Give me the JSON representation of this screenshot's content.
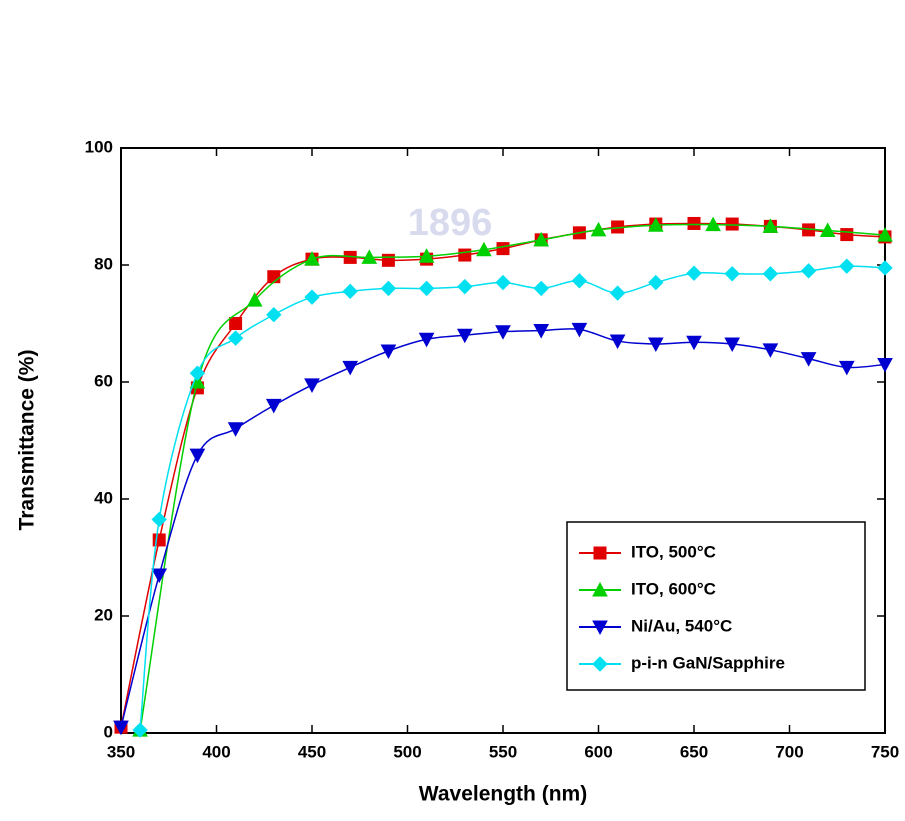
{
  "chart_data": {
    "type": "line",
    "xlabel": "Wavelength (nm)",
    "ylabel": "Transmittance (%)",
    "watermark_text": "1896",
    "xlim": [
      350,
      750
    ],
    "xticks": [
      350,
      400,
      450,
      500,
      550,
      600,
      650,
      700,
      750
    ],
    "ylim": [
      0,
      100
    ],
    "yticks": [
      0,
      20,
      40,
      60,
      80,
      100
    ],
    "legend": "lower right",
    "series": [
      {
        "name": "ITO, 500°C",
        "color": "#e00000",
        "marker": "square",
        "x": [
          350,
          370,
          390,
          410,
          430,
          450,
          470,
          490,
          510,
          530,
          550,
          570,
          590,
          610,
          630,
          650,
          670,
          690,
          710,
          730,
          750
        ],
        "values": [
          1,
          33,
          59,
          70,
          78,
          81,
          81.3,
          80.8,
          81,
          81.7,
          82.8,
          84.3,
          85.5,
          86.5,
          87,
          87.1,
          87,
          86.6,
          86,
          85.2,
          84.8
        ]
      },
      {
        "name": "ITO, 600°C",
        "color": "#00d000",
        "marker": "triangle-up",
        "x": [
          360,
          390,
          420,
          450,
          480,
          510,
          540,
          570,
          600,
          630,
          660,
          690,
          720,
          750
        ],
        "values": [
          0.5,
          60,
          74,
          81,
          81.3,
          81.5,
          82.6,
          84.3,
          86,
          86.8,
          86.9,
          86.6,
          85.9,
          85.1
        ]
      },
      {
        "name": "Ni/Au, 540°C",
        "color": "#0000d0",
        "marker": "triangle-down",
        "x": [
          350,
          370,
          390,
          410,
          430,
          450,
          470,
          490,
          510,
          530,
          550,
          570,
          590,
          610,
          630,
          650,
          670,
          690,
          710,
          730,
          750
        ],
        "values": [
          1,
          27,
          47.5,
          52,
          56,
          59.5,
          62.5,
          65.3,
          67.3,
          68,
          68.6,
          68.8,
          69,
          67,
          66.5,
          66.8,
          66.5,
          65.5,
          64,
          62.5,
          63
        ]
      },
      {
        "name": "p-i-n GaN/Sapphire",
        "color": "#00e0f0",
        "marker": "diamond",
        "x": [
          360,
          370,
          390,
          410,
          430,
          450,
          470,
          490,
          510,
          530,
          550,
          570,
          590,
          610,
          630,
          650,
          670,
          690,
          710,
          730,
          750
        ],
        "values": [
          0.5,
          36.5,
          61.5,
          67.5,
          71.5,
          74.5,
          75.5,
          76,
          76,
          76.3,
          77,
          76,
          77.3,
          75.2,
          77,
          78.6,
          78.5,
          78.5,
          79,
          79.8,
          79.5
        ]
      }
    ]
  }
}
